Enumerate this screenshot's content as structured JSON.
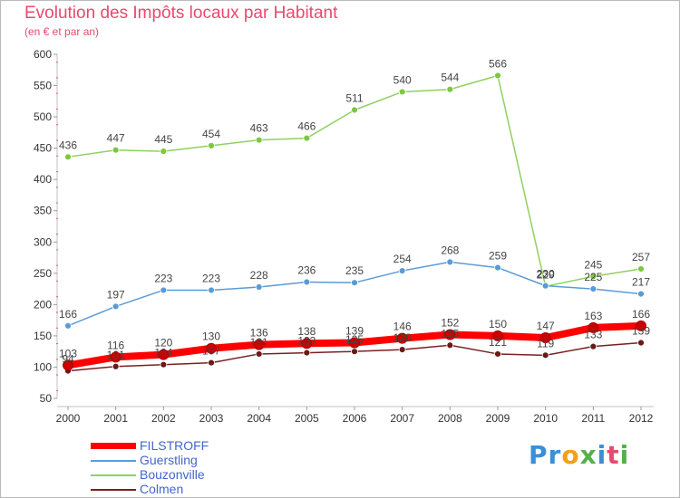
{
  "chart_data": {
    "type": "line",
    "title": "Evolution des Impôts locaux par Habitant",
    "subtitle": "(en € et par an)",
    "xlabel": "",
    "ylabel": "",
    "x": [
      "2000",
      "2001",
      "2002",
      "2003",
      "2004",
      "2005",
      "2006",
      "2007",
      "2008",
      "2009",
      "2010",
      "2011",
      "2012"
    ],
    "ylim": [
      50,
      600
    ],
    "yticks": [
      50,
      100,
      150,
      200,
      250,
      300,
      350,
      400,
      450,
      500,
      550,
      600
    ],
    "grid": false,
    "legend_position": "bottom-left",
    "series": [
      {
        "name": "FILSTROFF",
        "color": "#ff0000",
        "marker": "#cc0000",
        "values": [
          103,
          116,
          120,
          130,
          136,
          138,
          139,
          146,
          152,
          150,
          147,
          163,
          166
        ]
      },
      {
        "name": "Guerstling",
        "color": "#5b9bd5",
        "marker": "#5b9bd5",
        "values": [
          166,
          197,
          223,
          223,
          228,
          236,
          235,
          254,
          268,
          259,
          230,
          225,
          217
        ]
      },
      {
        "name": "Bouzonville",
        "color": "#90d060",
        "marker": "#7cc83e",
        "values": [
          436,
          447,
          445,
          454,
          463,
          466,
          511,
          540,
          544,
          566,
          229,
          245,
          257
        ]
      },
      {
        "name": "Colmen",
        "color": "#7a2020",
        "marker": "#6a1818",
        "values": [
          94,
          101,
          104,
          107,
          121,
          123,
          125,
          128,
          135,
          121,
          119,
          133,
          139
        ]
      }
    ]
  },
  "logo": {
    "text": "Proxiti",
    "parts": [
      "Pr",
      "o",
      "x",
      "i",
      "t",
      "i"
    ]
  }
}
